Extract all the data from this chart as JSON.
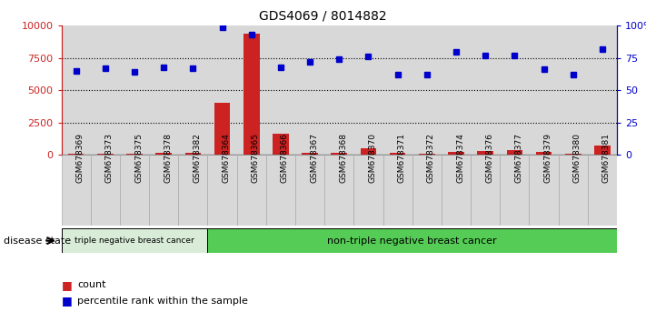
{
  "title": "GDS4069 / 8014882",
  "samples": [
    "GSM678369",
    "GSM678373",
    "GSM678375",
    "GSM678378",
    "GSM678382",
    "GSM678364",
    "GSM678365",
    "GSM678366",
    "GSM678367",
    "GSM678368",
    "GSM678370",
    "GSM678371",
    "GSM678372",
    "GSM678374",
    "GSM678376",
    "GSM678377",
    "GSM678379",
    "GSM678380",
    "GSM678381"
  ],
  "counts": [
    80,
    50,
    100,
    120,
    150,
    4000,
    9400,
    1600,
    120,
    150,
    500,
    150,
    100,
    200,
    300,
    350,
    200,
    100,
    700
  ],
  "percentile": [
    65,
    67,
    64,
    68,
    67,
    99,
    93,
    68,
    72,
    74,
    76,
    62,
    62,
    80,
    77,
    77,
    66,
    62,
    82
  ],
  "group1_count": 5,
  "group1_label": "triple negative breast cancer",
  "group2_label": "non-triple negative breast cancer",
  "bar_color": "#cc2222",
  "dot_color": "#0000cc",
  "ylim_left": [
    0,
    10000
  ],
  "ylim_right": [
    0,
    100
  ],
  "yticks_left": [
    0,
    2500,
    5000,
    7500,
    10000
  ],
  "ytick_labels_left": [
    "0",
    "2500",
    "5000",
    "7500",
    "10000"
  ],
  "ytick_labels_right": [
    "0",
    "25",
    "50",
    "75",
    "100%"
  ],
  "legend_count_label": "count",
  "legend_pct_label": "percentile rank within the sample",
  "disease_state_label": "disease state",
  "group1_bg": "#d8ecd8",
  "group2_bg": "#55cc55",
  "col_bg": "#d8d8d8",
  "col_border": "#aaaaaa"
}
